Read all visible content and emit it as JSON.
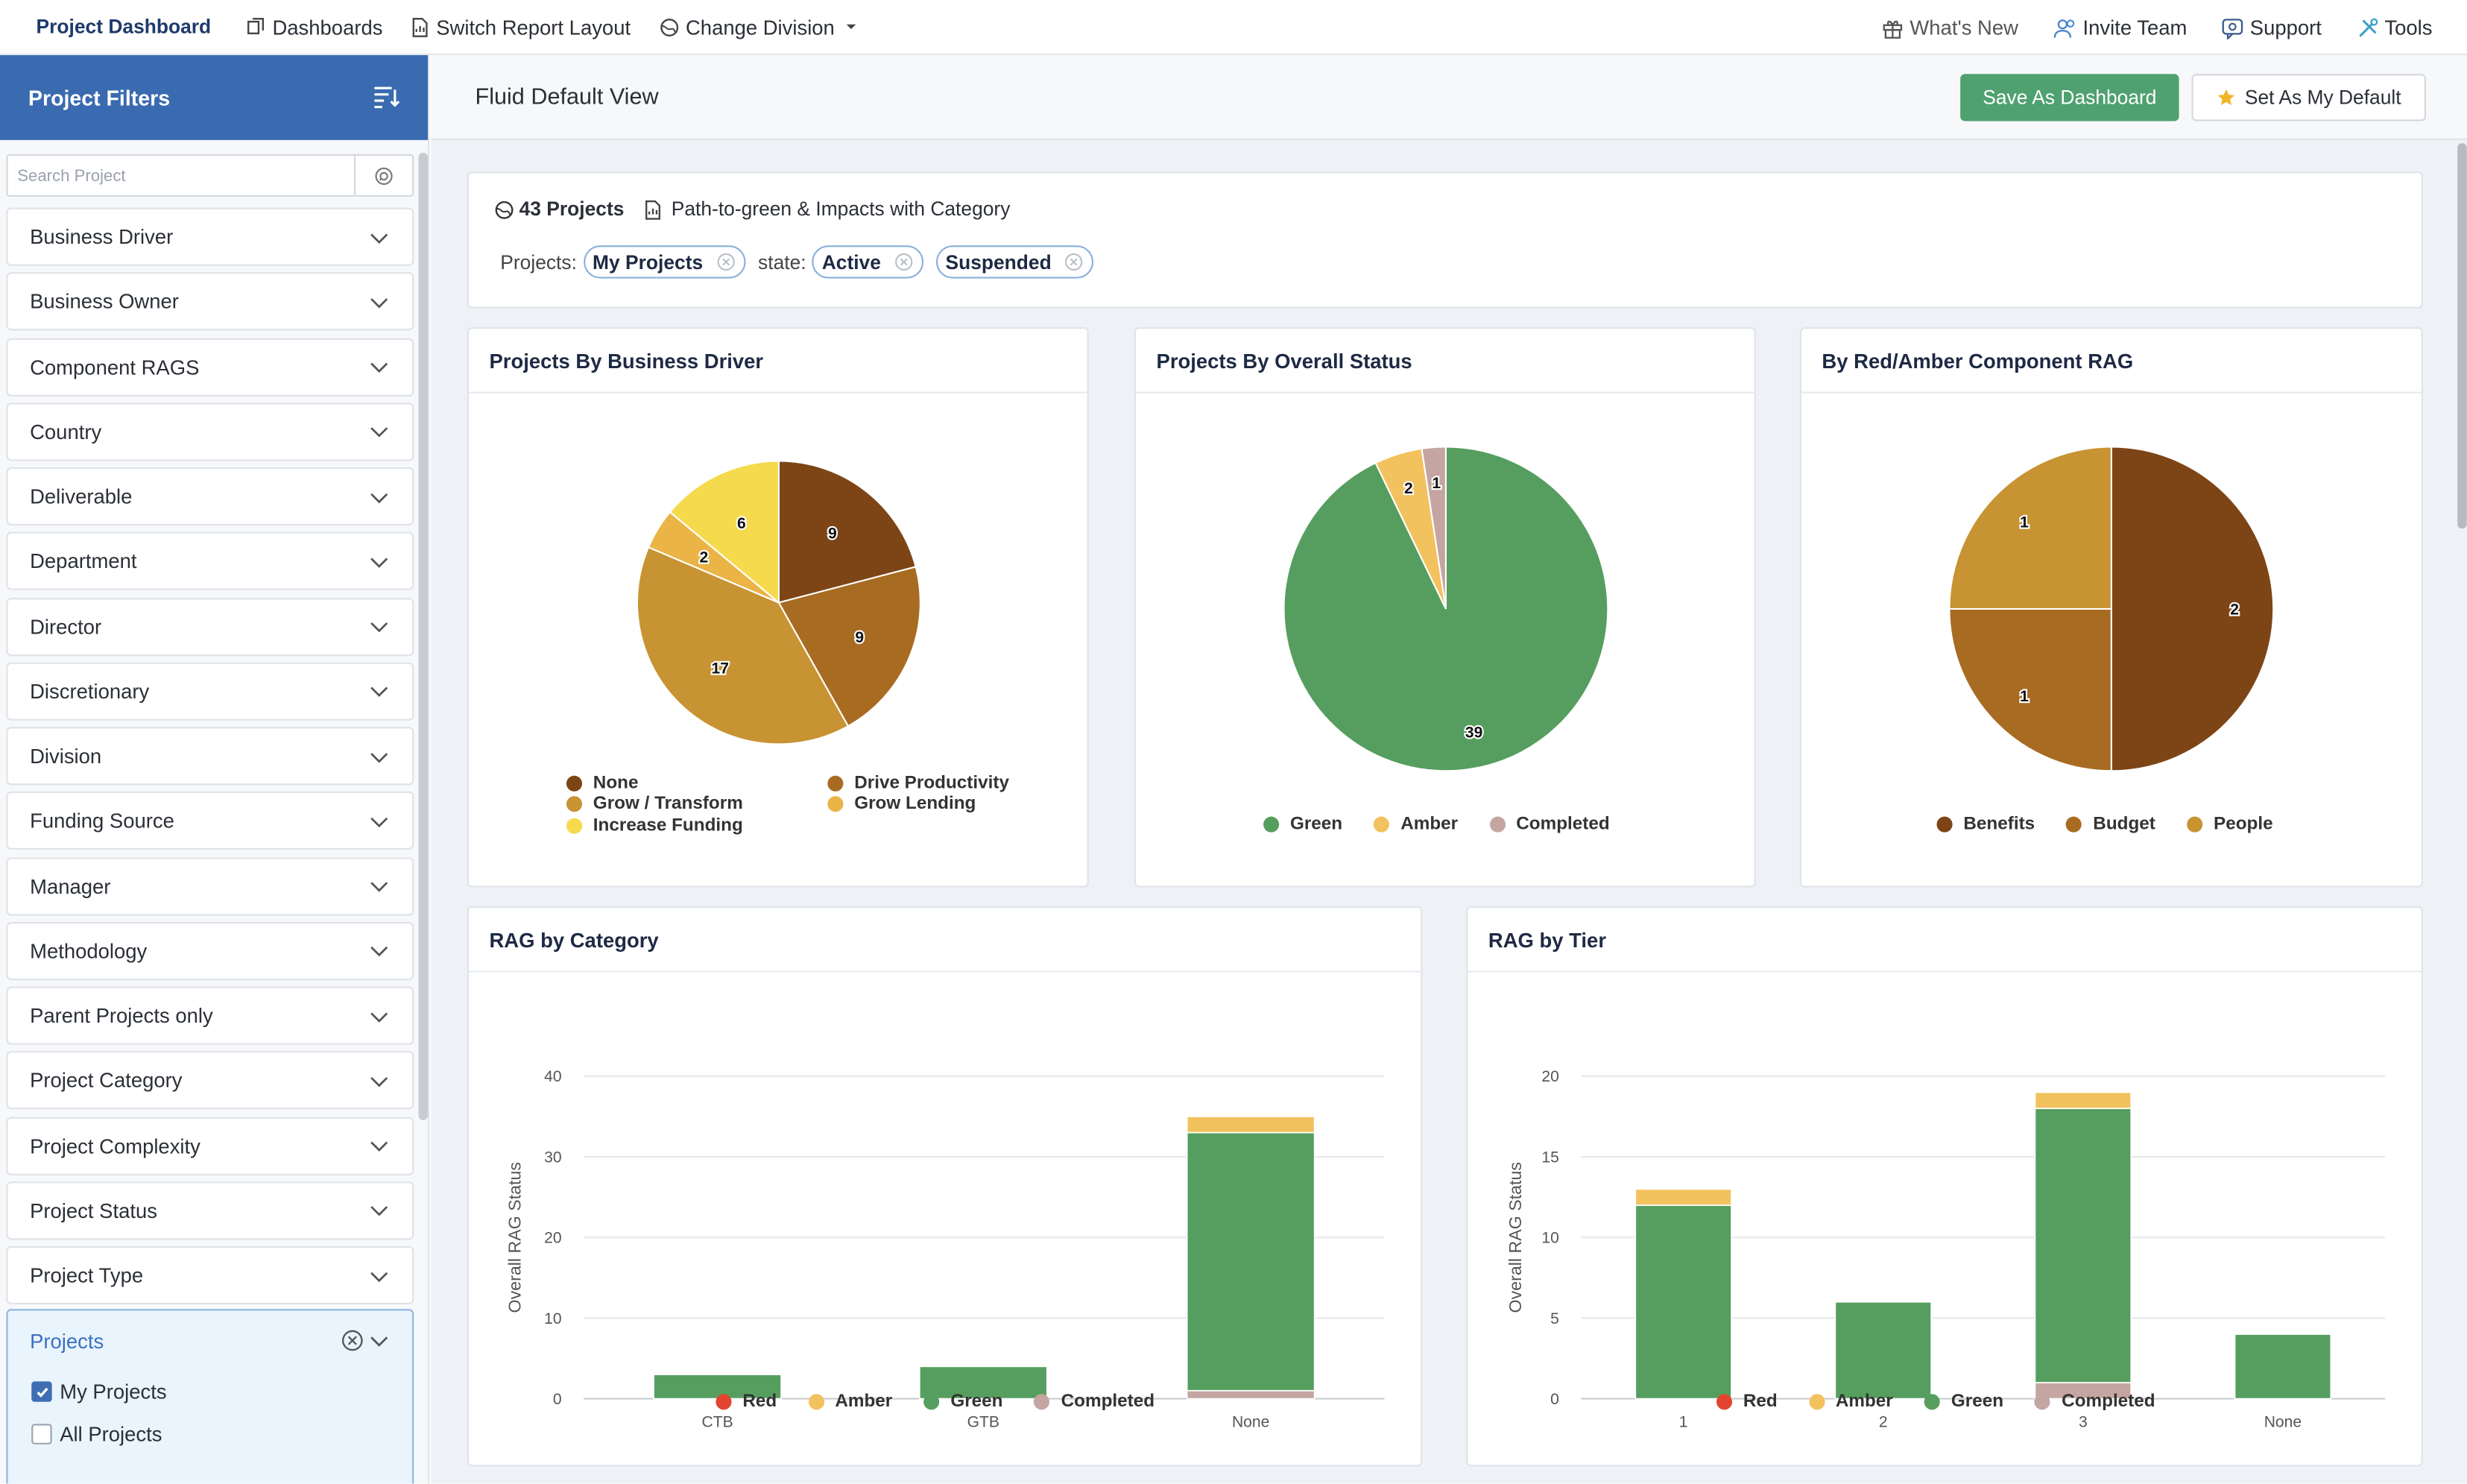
{
  "topbar": {
    "brand": "Project Dashboard",
    "dashboards": "Dashboards",
    "switch_layout": "Switch Report Layout",
    "change_division": "Change Division",
    "whats_new": "What's New",
    "invite_team": "Invite Team",
    "support": "Support",
    "tools": "Tools"
  },
  "sidebar": {
    "title": "Project Filters",
    "search_placeholder": "Search Project",
    "filters": [
      "Business Driver",
      "Business Owner",
      "Component RAGS",
      "Country",
      "Deliverable",
      "Department",
      "Director",
      "Discretionary",
      "Division",
      "Funding Source",
      "Manager",
      "Methodology",
      "Parent Projects only",
      "Project Category",
      "Project Complexity",
      "Project Status",
      "Project Type"
    ],
    "expanded": {
      "label": "Projects",
      "options": [
        {
          "label": "My Projects",
          "checked": true
        },
        {
          "label": "All Projects",
          "checked": false
        }
      ]
    }
  },
  "main": {
    "view_title": "Fluid Default View",
    "save_dashboard": "Save As Dashboard",
    "set_default": "Set As My Default",
    "summary": {
      "count": "43 Projects",
      "report": "Path-to-green & Impacts with Category",
      "projects_label": "Projects:",
      "projects_chip": "My Projects",
      "state_label": "state:",
      "state_chips": [
        "Active",
        "Suspended"
      ]
    }
  },
  "colors": {
    "accent": "#3a6bb0",
    "save_button": "#4fa170",
    "green": "#569e5f",
    "amber": "#f2c25f",
    "red": "#e0452f",
    "completed": "#c4a5a1"
  },
  "chart_data": [
    {
      "type": "pie",
      "title": "Projects By Business Driver",
      "slices": [
        {
          "label": "None",
          "value": 9,
          "color": "#7d4516"
        },
        {
          "label": "Drive Productivity",
          "value": 9,
          "color": "#a86b22"
        },
        {
          "label": "Grow / Transform",
          "value": 17,
          "color": "#c89332"
        },
        {
          "label": "Grow Lending",
          "value": 2,
          "color": "#eab446"
        },
        {
          "label": "Increase Funding",
          "value": 6,
          "color": "#f6da4e"
        }
      ]
    },
    {
      "type": "pie",
      "title": "Projects By Overall Status",
      "slices": [
        {
          "label": "Green",
          "value": 39,
          "color": "#569e5f"
        },
        {
          "label": "Amber",
          "value": 2,
          "color": "#f2c25f"
        },
        {
          "label": "Completed",
          "value": 1,
          "color": "#c4a5a1"
        }
      ]
    },
    {
      "type": "pie",
      "title": "By Red/Amber Component RAG",
      "slices": [
        {
          "label": "Benefits",
          "value": 2,
          "color": "#7d4516"
        },
        {
          "label": "Budget",
          "value": 1,
          "color": "#a86b22"
        },
        {
          "label": "People",
          "value": 1,
          "color": "#c89332"
        }
      ]
    },
    {
      "type": "bar",
      "stacked": true,
      "title": "RAG by Category",
      "ylabel": "Overall RAG Status",
      "ylim": [
        0,
        40
      ],
      "yticks": [
        0,
        10,
        20,
        30,
        40
      ],
      "categories": [
        "CTB",
        "GTB",
        "None"
      ],
      "series": [
        {
          "name": "Red",
          "color": "#e0452f",
          "values": [
            0,
            0,
            0
          ]
        },
        {
          "name": "Amber",
          "color": "#f2c25f",
          "values": [
            0,
            0,
            2
          ]
        },
        {
          "name": "Green",
          "color": "#569e5f",
          "values": [
            3,
            4,
            32
          ]
        },
        {
          "name": "Completed",
          "color": "#c4a5a1",
          "values": [
            0,
            0,
            1
          ]
        }
      ]
    },
    {
      "type": "bar",
      "stacked": true,
      "title": "RAG by Tier",
      "ylabel": "Overall RAG Status",
      "ylim": [
        0,
        20
      ],
      "yticks": [
        0,
        5,
        10,
        15,
        20
      ],
      "categories": [
        "1",
        "2",
        "3",
        "None"
      ],
      "series": [
        {
          "name": "Red",
          "color": "#e0452f",
          "values": [
            0,
            0,
            0,
            0
          ]
        },
        {
          "name": "Amber",
          "color": "#f2c25f",
          "values": [
            1,
            0,
            1,
            0
          ]
        },
        {
          "name": "Green",
          "color": "#569e5f",
          "values": [
            12,
            6,
            17,
            4
          ]
        },
        {
          "name": "Completed",
          "color": "#c4a5a1",
          "values": [
            0,
            0,
            1,
            0
          ]
        }
      ]
    }
  ]
}
